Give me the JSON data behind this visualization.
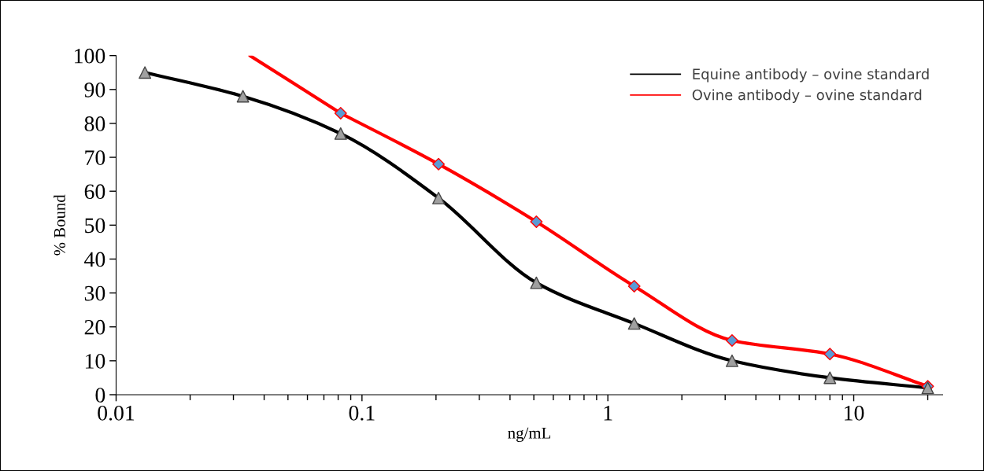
{
  "chart_data": {
    "type": "line",
    "xlabel": "ng/mL",
    "ylabel": "% Bound",
    "log": "x",
    "xlim": [
      0.01,
      23
    ],
    "xticks": [
      {
        "value": 0.01,
        "label": "0.01"
      },
      {
        "value": 0.1,
        "label": "0.1"
      },
      {
        "value": 1,
        "label": "1"
      },
      {
        "value": 10,
        "label": "10"
      }
    ],
    "ylim": [
      0,
      100
    ],
    "yticks": [
      0,
      10,
      20,
      30,
      40,
      50,
      60,
      70,
      80,
      90,
      100
    ],
    "grid": false,
    "legend": "top right",
    "line_style": "solid",
    "series": [
      {
        "name": "Equine antibody – ovine standard",
        "color": "#000000",
        "marker": "triangle",
        "x": [
          0.0131,
          0.0328,
          0.0819,
          0.2048,
          0.512,
          1.28,
          3.2,
          8,
          20
        ],
        "values": [
          95,
          88,
          77,
          58,
          33,
          21,
          10,
          5,
          2
        ]
      },
      {
        "name": "Ovine antibody – ovine standard",
        "color": "#ff0000",
        "marker": "diamond",
        "x": [
          0.0819,
          0.2048,
          0.512,
          1.28,
          3.2,
          8,
          20
        ],
        "values": [
          83,
          68,
          51,
          32,
          16,
          12,
          2.5
        ]
      },
      {
        "color": "#ff0000",
        "marker": "none",
        "x": [
          0.035,
          0.0819
        ],
        "values": [
          100,
          83
        ]
      }
    ]
  }
}
